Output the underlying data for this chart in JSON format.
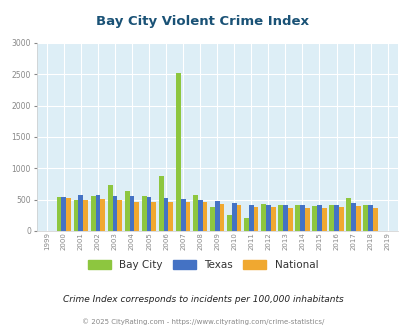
{
  "title": "Bay City Violent Crime Index",
  "years": [
    1999,
    2000,
    2001,
    2002,
    2003,
    2004,
    2005,
    2006,
    2007,
    2008,
    2009,
    2010,
    2011,
    2012,
    2013,
    2014,
    2015,
    2016,
    2017,
    2018,
    2019
  ],
  "bay_city": [
    0,
    540,
    490,
    560,
    740,
    640,
    560,
    880,
    2520,
    580,
    390,
    250,
    200,
    430,
    420,
    420,
    400,
    420,
    520,
    420,
    0
  ],
  "texas": [
    0,
    550,
    580,
    570,
    560,
    560,
    540,
    530,
    510,
    500,
    480,
    450,
    410,
    420,
    420,
    410,
    410,
    420,
    440,
    410,
    0
  ],
  "national": [
    0,
    530,
    500,
    510,
    500,
    470,
    470,
    470,
    470,
    460,
    430,
    420,
    390,
    390,
    370,
    370,
    370,
    380,
    400,
    370,
    0
  ],
  "bar_colors": {
    "bay_city": "#8dc63f",
    "texas": "#4472c4",
    "national": "#f0a830"
  },
  "ylim": [
    0,
    3000
  ],
  "yticks": [
    0,
    500,
    1000,
    1500,
    2000,
    2500,
    3000
  ],
  "bg_color": "#ddeef6",
  "grid_color": "#ffffff",
  "title_color": "#1a5276",
  "axis_color": "#888888",
  "subtitle": "Crime Index corresponds to incidents per 100,000 inhabitants",
  "footer": "© 2025 CityRating.com - https://www.cityrating.com/crime-statistics/",
  "legend_labels": [
    "Bay City",
    "Texas",
    "National"
  ]
}
